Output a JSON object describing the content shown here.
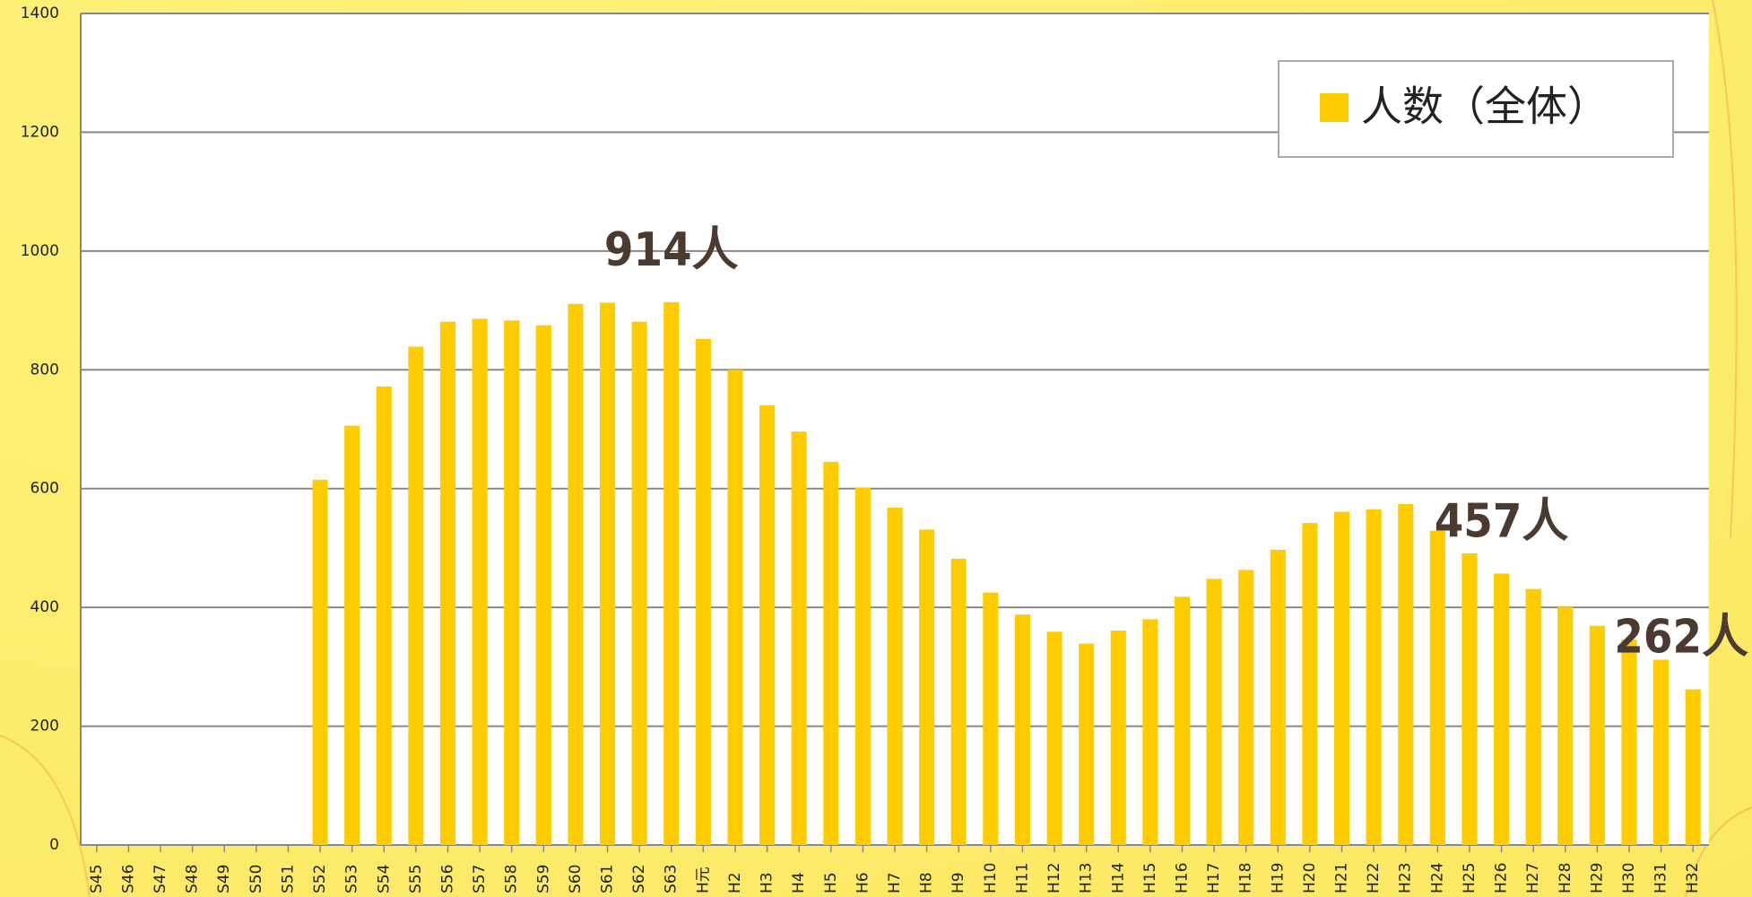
{
  "chart_data": {
    "type": "bar",
    "categories": [
      "S45",
      "S46",
      "S47",
      "S48",
      "S49",
      "S50",
      "S51",
      "S52",
      "S53",
      "S54",
      "S55",
      "S56",
      "S57",
      "S58",
      "S59",
      "S60",
      "S61",
      "S62",
      "S63",
      "H元",
      "H2",
      "H3",
      "H4",
      "H5",
      "H6",
      "H7",
      "H8",
      "H9",
      "H10",
      "H11",
      "H12",
      "H13",
      "H14",
      "H15",
      "H16",
      "H17",
      "H18",
      "H19",
      "H20",
      "H21",
      "H22",
      "H23",
      "H24",
      "H25",
      "H26",
      "H27",
      "H28",
      "H29",
      "H30",
      "H31",
      "H32"
    ],
    "series": [
      {
        "name": "人数（全体）",
        "color": "#ffcc00",
        "values": [
          null,
          null,
          null,
          null,
          null,
          null,
          null,
          615,
          706,
          772,
          839,
          881,
          886,
          883,
          875,
          911,
          913,
          881,
          914,
          852,
          800,
          740,
          696,
          645,
          602,
          568,
          531,
          482,
          425,
          388,
          359,
          339,
          361,
          380,
          418,
          448,
          463,
          497,
          542,
          561,
          565,
          574,
          529,
          491,
          457,
          431,
          401,
          369,
          346,
          312,
          262
        ],
        "value_labels": [
          null,
          null,
          null,
          null,
          null,
          null,
          null,
          null,
          null,
          null,
          null,
          null,
          null,
          null,
          null,
          null,
          null,
          null,
          "914人",
          null,
          null,
          null,
          null,
          null,
          null,
          null,
          null,
          null,
          null,
          null,
          null,
          null,
          null,
          null,
          null,
          null,
          null,
          null,
          null,
          null,
          null,
          null,
          null,
          null,
          "457人",
          null,
          null,
          null,
          null,
          null,
          "262人"
        ]
      }
    ],
    "ylim": [
      0,
      1400
    ],
    "yticks": [
      0,
      200,
      400,
      600,
      800,
      1000,
      1200,
      1400
    ],
    "grid": true,
    "legend": "top-right"
  }
}
